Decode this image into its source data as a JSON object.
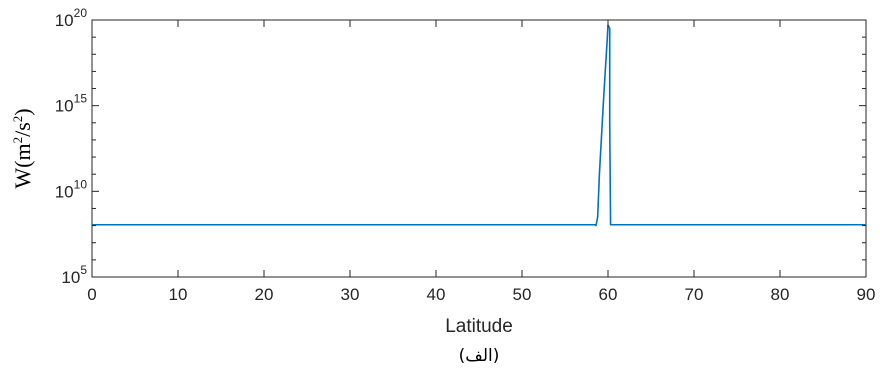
{
  "chart_data": {
    "type": "line",
    "xlabel": "Latitude",
    "ylabel": {
      "base": "W(m",
      "sup1": "2",
      "mid": "/s",
      "sup2": "2",
      "end": ")"
    },
    "caption": "(الف)",
    "xlim": [
      0,
      90
    ],
    "ylim_exponent": [
      5,
      20
    ],
    "yscale": "log",
    "x_ticks": [
      0,
      10,
      20,
      30,
      40,
      50,
      60,
      70,
      80,
      90
    ],
    "y_ticks": [
      {
        "base": "10",
        "exp": "5",
        "value_exp": 5
      },
      {
        "base": "10",
        "exp": "10",
        "value_exp": 10
      },
      {
        "base": "10",
        "exp": "15",
        "value_exp": 15
      },
      {
        "base": "10",
        "exp": "20",
        "value_exp": 20
      }
    ],
    "grid": false,
    "line_color": "#0072bd",
    "series": [
      {
        "x": [
          0,
          58.5,
          58.6,
          58.8,
          59.0,
          59.5,
          59.9,
          60.0,
          60.2,
          60.2,
          60.3,
          61,
          70,
          80,
          90
        ],
        "y_exp": [
          8.05,
          8.05,
          8.0,
          8.5,
          11.0,
          15.5,
          18.8,
          19.7,
          19.5,
          14.0,
          8.05,
          8.05,
          8.05,
          8.05,
          8.05
        ]
      }
    ]
  }
}
